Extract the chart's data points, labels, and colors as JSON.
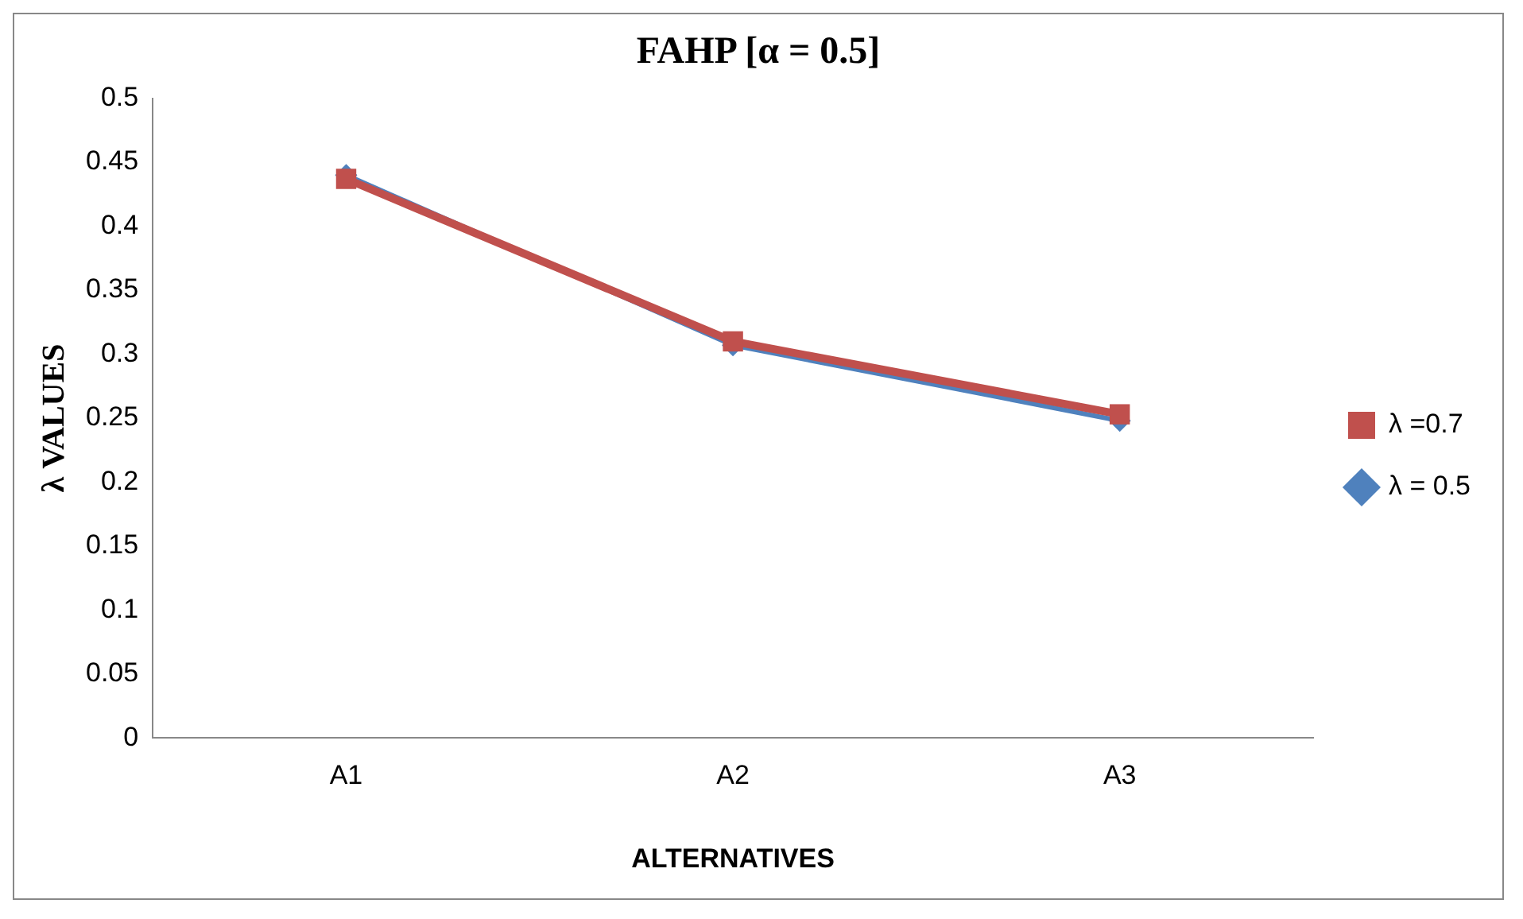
{
  "chart_data": {
    "type": "line",
    "title": "FAHP [α = 0.5]",
    "xlabel": "ALTERNATIVES",
    "ylabel": "λ VALUES",
    "categories": [
      "A1",
      "A2",
      "A3"
    ],
    "series": [
      {
        "name": "λ = 0.5",
        "color": "#4f81bd",
        "marker": "diamond",
        "values": [
          0.44,
          0.307,
          0.248
        ]
      },
      {
        "name": "λ =0.7",
        "color": "#c0504d",
        "marker": "square",
        "values": [
          0.437,
          0.31,
          0.253
        ]
      }
    ],
    "ylim": [
      0,
      0.5
    ],
    "yticks": [
      0,
      0.05,
      0.1,
      0.15,
      0.2,
      0.25,
      0.3,
      0.35,
      0.4,
      0.45,
      0.5
    ],
    "grid": false,
    "legend": "right"
  }
}
